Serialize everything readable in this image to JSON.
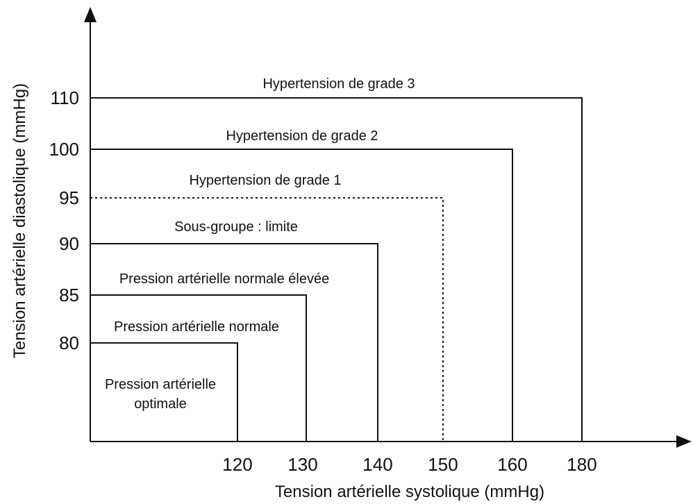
{
  "axes": {
    "x_title": "Tension artérielle systolique (mmHg)",
    "y_title": "Tension artérielle diastolique (mmHg)",
    "x_ticks": [
      "120",
      "130",
      "140",
      "150",
      "160",
      "180"
    ],
    "y_ticks": [
      "110",
      "100",
      "95",
      "90",
      "85",
      "80"
    ]
  },
  "zones": [
    {
      "id": "optimal",
      "label_lines": [
        "Pression artérielle",
        "optimale"
      ],
      "systolic_max": 120,
      "diastolic_max": 80,
      "dashed": false
    },
    {
      "id": "normal",
      "label_lines": [
        "Pression artérielle normale"
      ],
      "systolic_max": 130,
      "diastolic_max": 85,
      "dashed": false
    },
    {
      "id": "high-normal",
      "label_lines": [
        "Pression artérielle normale élevée"
      ],
      "systolic_max": 140,
      "diastolic_max": 90,
      "dashed": false
    },
    {
      "id": "borderline",
      "label_lines": [
        "Sous-groupe : limite"
      ],
      "systolic_max": 150,
      "diastolic_max": 95,
      "dashed": true
    },
    {
      "id": "grade-1",
      "label_lines": [
        "Hypertension de grade 1"
      ],
      "systolic_max": 160,
      "diastolic_max": 100,
      "dashed": false
    },
    {
      "id": "grade-2",
      "label_lines": [
        "Hypertension de grade 2"
      ],
      "systolic_max": 180,
      "diastolic_max": 110,
      "dashed": false
    },
    {
      "id": "grade-3",
      "label_lines": [
        "Hypertension de grade 3"
      ],
      "systolic_max": null,
      "diastolic_max": null,
      "dashed": false
    }
  ],
  "colors": {
    "line": "#111111",
    "background": "#ffffff"
  }
}
